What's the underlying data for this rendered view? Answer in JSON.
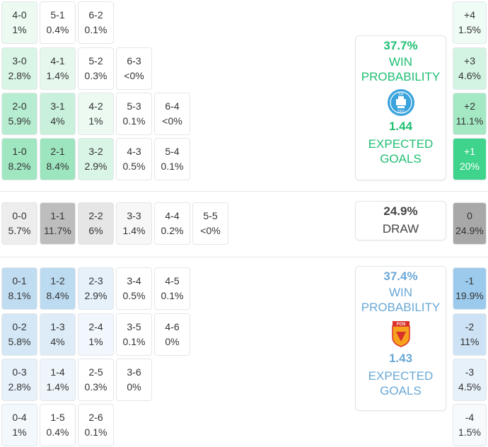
{
  "home": {
    "scores": [
      {
        "s": "4-0",
        "p": "1%",
        "bg": "#ecfaf2"
      },
      {
        "s": "5-1",
        "p": "0.4%",
        "bg": "#ffffff"
      },
      {
        "s": "6-2",
        "p": "0.1%",
        "bg": "#ffffff"
      },
      {
        "s": "3-0",
        "p": "2.8%",
        "bg": "#d9f5e6"
      },
      {
        "s": "4-1",
        "p": "1.4%",
        "bg": "#e6f8ee"
      },
      {
        "s": "5-2",
        "p": "0.3%",
        "bg": "#ffffff"
      },
      {
        "s": "6-3",
        "p": "<0%",
        "bg": "#ffffff"
      },
      {
        "s": "2-0",
        "p": "5.9%",
        "bg": "#b6ecd0"
      },
      {
        "s": "3-1",
        "p": "4%",
        "bg": "#c8f0db"
      },
      {
        "s": "4-2",
        "p": "1%",
        "bg": "#ecfaf2"
      },
      {
        "s": "5-3",
        "p": "0.1%",
        "bg": "#ffffff"
      },
      {
        "s": "6-4",
        "p": "<0%",
        "bg": "#ffffff"
      },
      {
        "s": "1-0",
        "p": "8.2%",
        "bg": "#9fe6c1"
      },
      {
        "s": "2-1",
        "p": "8.4%",
        "bg": "#9de5bf"
      },
      {
        "s": "3-2",
        "p": "2.9%",
        "bg": "#d9f5e6"
      },
      {
        "s": "4-3",
        "p": "0.5%",
        "bg": "#ffffff"
      },
      {
        "s": "5-4",
        "p": "0.1%",
        "bg": "#ffffff"
      }
    ],
    "summary": {
      "win_pct": "37.7%",
      "win_label_1": "WIN",
      "win_label_2": "PROBABILITY",
      "xg": "1.44",
      "xg_label_1": "EXPECTED",
      "xg_label_2": "GOALS",
      "logo_text": "SIF",
      "logo_year": "1911"
    },
    "goal_diff": [
      {
        "d": "+4",
        "p": "1.5%",
        "bg": "#effbf5"
      },
      {
        "d": "+3",
        "p": "4.6%",
        "bg": "#d4f4e3"
      },
      {
        "d": "+2",
        "p": "11.1%",
        "bg": "#a4e8c4"
      },
      {
        "d": "+1",
        "p": "20%",
        "bg": "#3fd48b"
      }
    ]
  },
  "draw": {
    "scores": [
      {
        "s": "0-0",
        "p": "5.7%",
        "bg": "#ededed"
      },
      {
        "s": "1-1",
        "p": "11.7%",
        "bg": "#bdbdbd"
      },
      {
        "s": "2-2",
        "p": "6%",
        "bg": "#e6e6e6"
      },
      {
        "s": "3-3",
        "p": "1.4%",
        "bg": "#f7f7f7"
      },
      {
        "s": "4-4",
        "p": "0.2%",
        "bg": "#ffffff"
      },
      {
        "s": "5-5",
        "p": "<0%",
        "bg": "#ffffff"
      }
    ],
    "summary": {
      "pct": "24.9%",
      "label": "DRAW"
    },
    "goal_diff": {
      "d": "0",
      "p": "24.9%",
      "bg": "#a8a8a8"
    }
  },
  "away": {
    "scores": [
      {
        "s": "0-1",
        "p": "8.1%",
        "bg": "#c0dcf1"
      },
      {
        "s": "1-2",
        "p": "8.4%",
        "bg": "#bcdaf0"
      },
      {
        "s": "2-3",
        "p": "2.9%",
        "bg": "#e6f1fa"
      },
      {
        "s": "3-4",
        "p": "0.5%",
        "bg": "#ffffff"
      },
      {
        "s": "4-5",
        "p": "0.1%",
        "bg": "#ffffff"
      },
      {
        "s": "0-2",
        "p": "5.8%",
        "bg": "#d3e7f6"
      },
      {
        "s": "1-3",
        "p": "4%",
        "bg": "#deecf8"
      },
      {
        "s": "2-4",
        "p": "1%",
        "bg": "#f1f7fc"
      },
      {
        "s": "3-5",
        "p": "0.1%",
        "bg": "#ffffff"
      },
      {
        "s": "4-6",
        "p": "0%",
        "bg": "#ffffff"
      },
      {
        "s": "0-3",
        "p": "2.8%",
        "bg": "#e7f1fa"
      },
      {
        "s": "1-4",
        "p": "1.4%",
        "bg": "#eef5fb"
      },
      {
        "s": "2-5",
        "p": "0.3%",
        "bg": "#ffffff"
      },
      {
        "s": "3-6",
        "p": "0%",
        "bg": "#ffffff"
      },
      {
        "s": "0-4",
        "p": "1%",
        "bg": "#f3f8fc"
      },
      {
        "s": "1-5",
        "p": "0.4%",
        "bg": "#ffffff"
      },
      {
        "s": "2-6",
        "p": "0.1%",
        "bg": "#ffffff"
      }
    ],
    "summary": {
      "win_pct": "37.4%",
      "win_label_1": "WIN",
      "win_label_2": "PROBABILITY",
      "xg": "1.43",
      "xg_label_1": "EXPECTED",
      "xg_label_2": "GOALS",
      "logo_text": "FCN"
    },
    "goal_diff": [
      {
        "d": "-1",
        "p": "19.9%",
        "bg": "#9ccaec"
      },
      {
        "d": "-2",
        "p": "11%",
        "bg": "#cde3f5"
      },
      {
        "d": "-3",
        "p": "4.5%",
        "bg": "#e7f1fa"
      },
      {
        "d": "-4",
        "p": "1.5%",
        "bg": "#f6fafd"
      }
    ]
  },
  "colors": {
    "home_accent": "#1fbf72",
    "away_accent": "#6aa8d6",
    "draw_accent": "#a8a8a8"
  }
}
